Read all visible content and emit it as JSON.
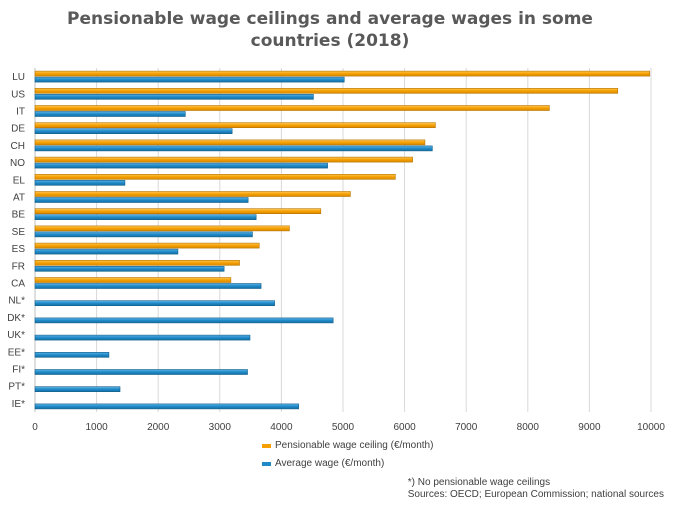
{
  "chart_data": {
    "type": "bar",
    "orientation": "horizontal",
    "title_line1": "Pensionable wage ceilings and average wages in some",
    "title_line2": "countries (2018)",
    "categories": [
      "LU",
      "US",
      "IT",
      "DE",
      "CH",
      "NO",
      "EL",
      "AT",
      "BE",
      "SE",
      "ES",
      "FR",
      "CA",
      "NL*",
      "DK*",
      "UK*",
      "EE*",
      "FI*",
      "PT*",
      "IE*"
    ],
    "series": [
      {
        "name": "Pensionable wage ceiling (€/month)",
        "color": "#F5A000",
        "values": [
          9980,
          9460,
          8350,
          6500,
          6330,
          6130,
          5850,
          5120,
          4640,
          4130,
          3640,
          3320,
          3180,
          null,
          null,
          null,
          null,
          null,
          null,
          null
        ]
      },
      {
        "name": "Average wage (€/month)",
        "color": "#1F8AC8",
        "values": [
          5020,
          4520,
          2440,
          3200,
          6450,
          4750,
          1460,
          3460,
          3590,
          3530,
          2320,
          3070,
          3670,
          3890,
          4840,
          3490,
          1200,
          3450,
          1380,
          4280
        ]
      }
    ],
    "xlim": [
      0,
      10000
    ],
    "xticks": [
      0,
      1000,
      2000,
      3000,
      4000,
      5000,
      6000,
      7000,
      8000,
      9000,
      10000
    ],
    "grid": true,
    "legend_position": "bottom",
    "notes": [
      "*) No pensionable wage ceilings",
      "Sources: OECD; European Commission; national sources"
    ]
  }
}
